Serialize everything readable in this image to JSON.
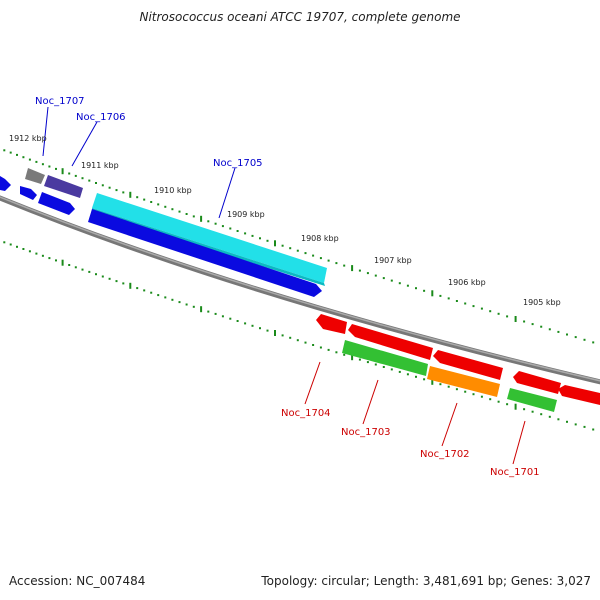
{
  "title": "Nitrosococcus oceani ATCC 19707, complete genome",
  "footer": {
    "accession": "Accession: NC_007484",
    "summary": "Topology: circular; Length: 3,481,691 bp; Genes: 3,027"
  },
  "ticks": [
    "1912 kbp",
    "1911 kbp",
    "1910 kbp",
    "1909 kbp",
    "1908 kbp",
    "1907 kbp",
    "1906 kbp",
    "1905 kbp"
  ],
  "genes_top": [
    "Noc_1707",
    "Noc_1706",
    "Noc_1705"
  ],
  "genes_bottom": [
    "Noc_1704",
    "Noc_1703",
    "Noc_1702",
    "Noc_1701"
  ],
  "colors": {
    "backbone": "#777777",
    "tick": "#1a8a1a",
    "label_top": "#0000cc",
    "label_bottom": "#cc0000",
    "cyan": "#22e0e8",
    "blue": "#0a0ae0",
    "purple": "#4a3aa0",
    "gray": "#7a7a7a",
    "red": "#ee0000",
    "green": "#33c033",
    "orange": "#ff8c00"
  }
}
